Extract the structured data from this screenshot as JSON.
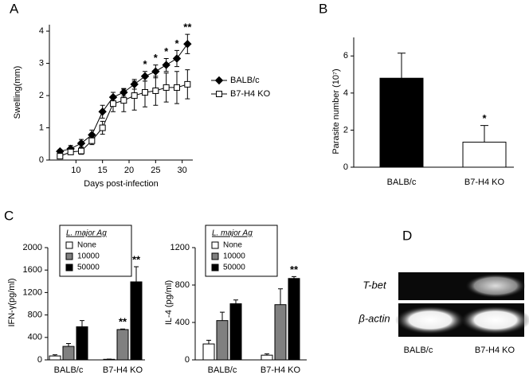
{
  "chart_data": [
    {
      "type": "line",
      "panel_label": "A",
      "xlabel": "Days post-infection",
      "ylabel": "Swelling(mm)",
      "x": [
        7,
        9,
        11,
        13,
        15,
        17,
        19,
        21,
        23,
        25,
        27,
        29,
        31
      ],
      "xlim": [
        5,
        32
      ],
      "xticks": [
        10,
        15,
        20,
        25,
        30
      ],
      "ylim": [
        0,
        4.2
      ],
      "yticks": [
        0,
        1,
        2,
        3,
        4
      ],
      "series": [
        {
          "name": "BALB/c",
          "color": "#000000",
          "marker": "diamond",
          "values": [
            0.27,
            0.35,
            0.52,
            0.78,
            1.5,
            1.95,
            2.1,
            2.35,
            2.6,
            2.75,
            2.95,
            3.15,
            3.6
          ],
          "errors": [
            0.05,
            0.1,
            0.12,
            0.15,
            0.2,
            0.15,
            0.12,
            0.15,
            0.15,
            0.2,
            0.2,
            0.25,
            0.3
          ]
        },
        {
          "name": "B7-H4 KO",
          "color": "#ffffff",
          "marker": "square",
          "values": [
            0.12,
            0.25,
            0.28,
            0.6,
            1.0,
            1.75,
            1.85,
            2.0,
            2.1,
            2.15,
            2.25,
            2.25,
            2.35
          ],
          "errors": [
            0.05,
            0.08,
            0.1,
            0.12,
            0.2,
            0.25,
            0.35,
            0.45,
            0.45,
            0.45,
            0.45,
            0.5,
            0.45
          ]
        }
      ],
      "annotations": [
        {
          "x": 23,
          "text": "*"
        },
        {
          "x": 25,
          "text": "*"
        },
        {
          "x": 27,
          "text": "*"
        },
        {
          "x": 29,
          "text": "*"
        },
        {
          "x": 31,
          "text": "**"
        }
      ]
    },
    {
      "type": "bar",
      "panel_label": "B",
      "ylabel": "Parasite number (10⁷)",
      "categories": [
        "BALB/c",
        "B7-H4 KO"
      ],
      "values": [
        4.8,
        1.35
      ],
      "errors": [
        1.35,
        0.9
      ],
      "colors": [
        "#000000",
        "#ffffff"
      ],
      "ylim": [
        0,
        7
      ],
      "yticks": [
        0,
        2,
        4,
        6
      ],
      "annotations": [
        {
          "category": "B7-H4 KO",
          "text": "*"
        }
      ]
    },
    {
      "type": "grouped-bar",
      "panel_label": "C",
      "ylabel": "IFN-γ(pg/ml)",
      "legend_title": "L. major Ag",
      "categories": [
        "BALB/c",
        "B7-H4 KO"
      ],
      "ylim": [
        0,
        2000
      ],
      "yticks": [
        0,
        400,
        800,
        1200,
        1600,
        2000
      ],
      "series": [
        {
          "name": "None",
          "color": "#ffffff",
          "values": [
            70,
            10
          ],
          "errors": [
            20,
            5
          ]
        },
        {
          "name": "10000",
          "color": "#808080",
          "values": [
            240,
            540
          ],
          "errors": [
            50,
            10
          ]
        },
        {
          "name": "50000",
          "color": "#000000",
          "values": [
            590,
            1390
          ],
          "errors": [
            110,
            270
          ]
        }
      ],
      "annotations": [
        {
          "category": "B7-H4 KO",
          "series": "10000",
          "text": "**"
        },
        {
          "category": "B7-H4 KO",
          "series": "50000",
          "text": "**"
        }
      ]
    },
    {
      "type": "grouped-bar",
      "ylabel": "IL-4 (pg/ml)",
      "legend_title": "L. major Ag",
      "categories": [
        "BALB/c",
        "B7-H4 KO"
      ],
      "ylim": [
        0,
        1200
      ],
      "yticks": [
        0,
        400,
        800,
        1200
      ],
      "series": [
        {
          "name": "None",
          "color": "#ffffff",
          "values": [
            170,
            50
          ],
          "errors": [
            40,
            15
          ]
        },
        {
          "name": "10000",
          "color": "#808080",
          "values": [
            420,
            590
          ],
          "errors": [
            90,
            170
          ]
        },
        {
          "name": "50000",
          "color": "#000000",
          "values": [
            600,
            870
          ],
          "errors": [
            40,
            20
          ]
        }
      ],
      "annotations": [
        {
          "category": "B7-H4 KO",
          "series": "50000",
          "text": "**"
        }
      ]
    },
    {
      "type": "gel",
      "panel_label": "D",
      "rows": [
        "T-bet",
        "β-actin"
      ],
      "lanes": [
        "BALB/c",
        "B7-H4 KO"
      ]
    }
  ]
}
